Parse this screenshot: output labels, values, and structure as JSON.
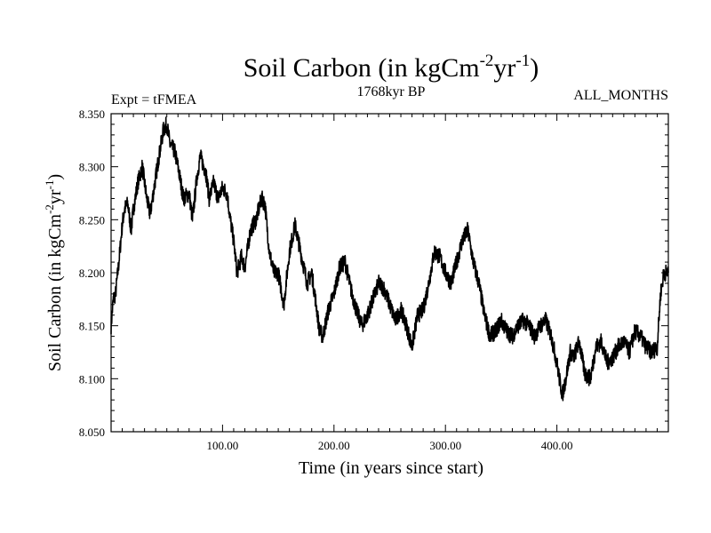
{
  "chart_data": {
    "type": "line",
    "title": "Soil Carbon (in kgCm",
    "title_sup1": "-2",
    "title_mid": "yr",
    "title_sup2": "-1",
    "title_end": ")",
    "left_label": "Expt = tFMEA",
    "center_label": "1768kyr BP",
    "right_label": "ALL_MONTHS",
    "xlabel": "Time (in years since start)",
    "ylabel": "Soil Carbon (in kgCm",
    "ylabel_sup1": "-2",
    "ylabel_mid": "yr",
    "ylabel_sup2": "-1",
    "ylabel_end": ")",
    "xlim": [
      0,
      500
    ],
    "ylim": [
      8.05,
      8.35
    ],
    "xticks": [
      100,
      200,
      300,
      400
    ],
    "xtick_labels": [
      "100.00",
      "200.00",
      "300.00",
      "400.00"
    ],
    "yticks": [
      8.05,
      8.1,
      8.15,
      8.2,
      8.25,
      8.3,
      8.35
    ],
    "ytick_labels": [
      "8.050",
      "8.100",
      "8.150",
      "8.200",
      "8.250",
      "8.300",
      "8.350"
    ],
    "series": [
      {
        "name": "Soil Carbon",
        "color": "#000000",
        "x": [
          0,
          2,
          4,
          7,
          10,
          12,
          15,
          18,
          20,
          24,
          28,
          32,
          35,
          40,
          43,
          47,
          50,
          53,
          57,
          60,
          65,
          70,
          73,
          77,
          80,
          85,
          88,
          92,
          96,
          100,
          104,
          107,
          110,
          113,
          117,
          120,
          125,
          130,
          135,
          138,
          142,
          146,
          150,
          155,
          160,
          165,
          168,
          172,
          176,
          180,
          184,
          187,
          190,
          195,
          200,
          205,
          210,
          215,
          220,
          225,
          230,
          235,
          240,
          245,
          250,
          255,
          260,
          265,
          270,
          275,
          280,
          285,
          290,
          295,
          300,
          305,
          310,
          315,
          320,
          325,
          330,
          335,
          340,
          345,
          350,
          355,
          360,
          365,
          370,
          375,
          380,
          385,
          390,
          395,
          400,
          403,
          405,
          408,
          412,
          415,
          420,
          425,
          430,
          435,
          440,
          445,
          450,
          455,
          460,
          465,
          470,
          475,
          480,
          485,
          490,
          493,
          496,
          500
        ],
        "y": [
          8.15,
          8.175,
          8.18,
          8.21,
          8.245,
          8.26,
          8.265,
          8.24,
          8.26,
          8.285,
          8.3,
          8.27,
          8.255,
          8.29,
          8.31,
          8.335,
          8.34,
          8.32,
          8.315,
          8.3,
          8.27,
          8.275,
          8.25,
          8.29,
          8.31,
          8.295,
          8.27,
          8.285,
          8.27,
          8.28,
          8.275,
          8.25,
          8.23,
          8.2,
          8.215,
          8.205,
          8.24,
          8.25,
          8.27,
          8.265,
          8.22,
          8.2,
          8.2,
          8.17,
          8.22,
          8.245,
          8.23,
          8.21,
          8.19,
          8.2,
          8.17,
          8.145,
          8.14,
          8.165,
          8.18,
          8.205,
          8.21,
          8.185,
          8.165,
          8.15,
          8.16,
          8.175,
          8.19,
          8.185,
          8.17,
          8.155,
          8.165,
          8.15,
          8.13,
          8.16,
          8.165,
          8.19,
          8.22,
          8.215,
          8.2,
          8.19,
          8.21,
          8.23,
          8.24,
          8.21,
          8.19,
          8.16,
          8.14,
          8.145,
          8.155,
          8.145,
          8.14,
          8.15,
          8.155,
          8.15,
          8.14,
          8.15,
          8.155,
          8.14,
          8.115,
          8.095,
          8.085,
          8.1,
          8.125,
          8.12,
          8.135,
          8.105,
          8.1,
          8.13,
          8.135,
          8.115,
          8.12,
          8.13,
          8.135,
          8.125,
          8.145,
          8.14,
          8.13,
          8.125,
          8.13,
          8.18,
          8.2,
          8.2
        ]
      }
    ]
  }
}
